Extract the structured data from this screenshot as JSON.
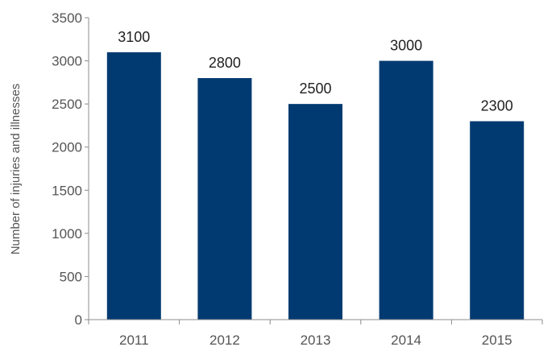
{
  "chart_data": {
    "type": "bar",
    "categories": [
      "2011",
      "2012",
      "2013",
      "2014",
      "2015"
    ],
    "values": [
      3100,
      2800,
      2500,
      3000,
      2300
    ],
    "data_labels": [
      "3100",
      "2800",
      "2500",
      "3000",
      "2300"
    ],
    "title": "",
    "xlabel": "",
    "ylabel": "Number of injuries and illnesses",
    "ylim": [
      0,
      3500
    ],
    "yticks": [
      0,
      500,
      1000,
      1500,
      2000,
      2500,
      3000,
      3500
    ],
    "ytick_labels": [
      "0",
      "500",
      "1000",
      "1500",
      "2000",
      "2500",
      "3000",
      "3500"
    ],
    "grid": false,
    "legend": "none",
    "bar_color": "#003a70"
  }
}
